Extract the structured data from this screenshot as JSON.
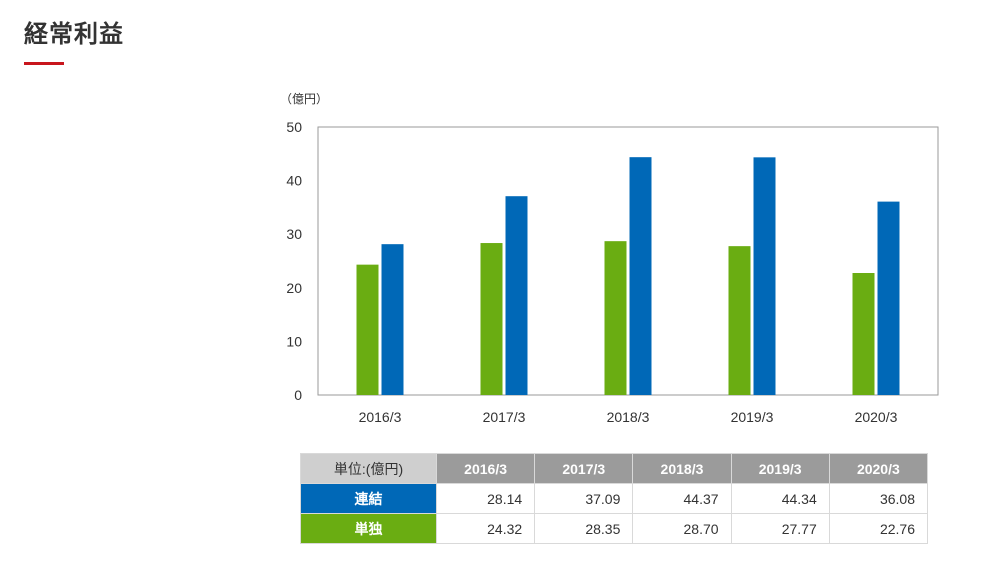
{
  "page": {
    "title": "経常利益"
  },
  "chart_data": {
    "type": "bar",
    "unit_label": "（億円）",
    "categories": [
      "2016/3",
      "2017/3",
      "2018/3",
      "2019/3",
      "2020/3"
    ],
    "series": [
      {
        "name": "単独",
        "color": "#6aad12",
        "values": [
          24.32,
          28.35,
          28.7,
          27.77,
          22.76
        ]
      },
      {
        "name": "連結",
        "color": "#0068b7",
        "values": [
          28.14,
          37.09,
          44.37,
          44.34,
          36.08
        ]
      }
    ],
    "ylim": [
      0,
      50
    ],
    "yticks": [
      "0",
      "10",
      "20",
      "30",
      "40",
      "50"
    ],
    "grid": false,
    "legend": "none"
  },
  "table": {
    "unit_header": "単位:(億円)",
    "years": [
      "2016/3",
      "2017/3",
      "2018/3",
      "2019/3",
      "2020/3"
    ],
    "rows": [
      {
        "label": "連結",
        "color": "#0068b7",
        "values": [
          "28.14",
          "37.09",
          "44.37",
          "44.34",
          "36.08"
        ]
      },
      {
        "label": "単独",
        "color": "#6aad12",
        "values": [
          "24.32",
          "28.35",
          "28.70",
          "27.77",
          "22.76"
        ]
      }
    ]
  }
}
